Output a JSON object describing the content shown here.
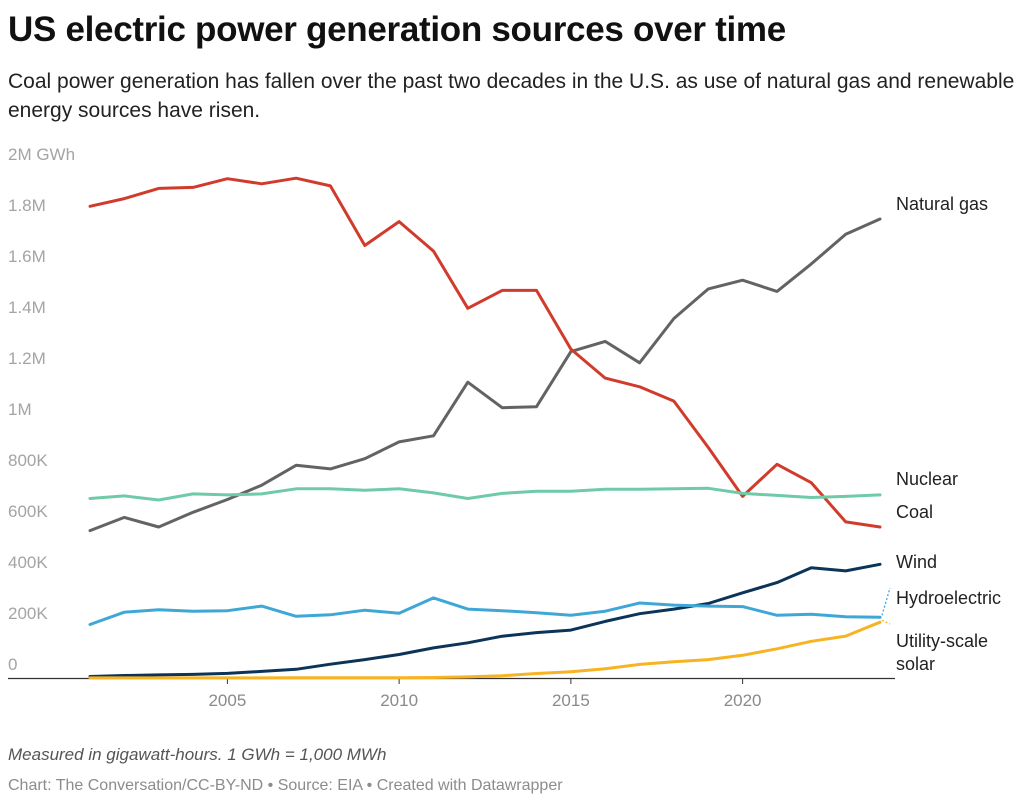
{
  "header": {
    "title": "US electric power generation sources over time",
    "subtitle": "Coal power generation has fallen over the past two decades in the U.S. as use of natural gas and renewable energy sources have risen."
  },
  "footer": {
    "note": "Measured in gigawatt-hours. 1 GWh = 1,000 MWh",
    "credit": "Chart: The Conversation/CC-BY-ND • Source: EIA • Created with Datawrapper"
  },
  "chart_data": {
    "type": "line",
    "title": "US electric power generation sources over time",
    "ylabel": "",
    "xlabel": "",
    "xlim": [
      2001,
      2024
    ],
    "ylim": [
      0,
      2000000
    ],
    "x_ticks": [
      2005,
      2010,
      2015,
      2020
    ],
    "y_ticks": [
      {
        "value": 0,
        "label": "0"
      },
      {
        "value": 200000,
        "label": "200K"
      },
      {
        "value": 400000,
        "label": "400K"
      },
      {
        "value": 600000,
        "label": "600K"
      },
      {
        "value": 800000,
        "label": "800K"
      },
      {
        "value": 1000000,
        "label": "1M"
      },
      {
        "value": 1200000,
        "label": "1.2M"
      },
      {
        "value": 1400000,
        "label": "1.4M"
      },
      {
        "value": 1600000,
        "label": "1.6M"
      },
      {
        "value": 1800000,
        "label": "1.8M"
      },
      {
        "value": 2000000,
        "label": "2M GWh"
      }
    ],
    "grid": false,
    "legend": "inline labels at line ends (right)",
    "x": [
      2001,
      2002,
      2003,
      2004,
      2005,
      2006,
      2007,
      2008,
      2009,
      2010,
      2011,
      2012,
      2013,
      2014,
      2015,
      2016,
      2017,
      2018,
      2019,
      2020,
      2021,
      2022,
      2023,
      2024
    ],
    "series": [
      {
        "name": "Natural gas",
        "label_lines": [
          "Natural gas"
        ],
        "color": "#636363",
        "values": [
          578000,
          630000,
          592000,
          650000,
          700000,
          756000,
          834000,
          820000,
          860000,
          926000,
          950000,
          1160000,
          1060000,
          1064000,
          1280000,
          1320000,
          1236000,
          1410000,
          1526000,
          1560000,
          1516000,
          1624000,
          1740000,
          1800000
        ]
      },
      {
        "name": "Coal",
        "label_lines": [
          "Coal"
        ],
        "color": "#d13b2c",
        "values": [
          1850000,
          1880000,
          1920000,
          1924000,
          1958000,
          1938000,
          1960000,
          1930000,
          1696000,
          1790000,
          1674000,
          1450000,
          1520000,
          1520000,
          1290000,
          1176000,
          1142000,
          1086000,
          904000,
          712000,
          838000,
          766000,
          612000,
          592000
        ]
      },
      {
        "name": "Nuclear",
        "label_lines": [
          "Nuclear"
        ],
        "color": "#6fcaa8",
        "values": [
          704000,
          714000,
          698000,
          722000,
          718000,
          722000,
          742000,
          742000,
          736000,
          742000,
          726000,
          704000,
          724000,
          732000,
          732000,
          740000,
          740000,
          742000,
          744000,
          724000,
          716000,
          708000,
          712000,
          718000
        ]
      },
      {
        "name": "Wind",
        "label_lines": [
          "Wind"
        ],
        "color": "#0b3458",
        "values": [
          6000,
          10000,
          12000,
          14000,
          18000,
          26000,
          34000,
          54000,
          72000,
          92000,
          118000,
          138000,
          164000,
          178000,
          188000,
          222000,
          252000,
          270000,
          292000,
          334000,
          374000,
          432000,
          420000,
          446000
        ]
      },
      {
        "name": "Hydroelectric",
        "label_lines": [
          "Hydroelectric"
        ],
        "color": "#3fa7d6",
        "values": [
          210000,
          258000,
          268000,
          262000,
          264000,
          282000,
          242000,
          248000,
          266000,
          254000,
          314000,
          270000,
          264000,
          256000,
          246000,
          262000,
          294000,
          286000,
          282000,
          280000,
          246000,
          250000,
          240000,
          238000
        ]
      },
      {
        "name": "Utility-scale solar",
        "label_lines": [
          "Utility-scale",
          "solar"
        ],
        "color": "#f7b322",
        "values": [
          500,
          500,
          500,
          500,
          500,
          500,
          600,
          900,
          900,
          1200,
          1800,
          4300,
          9000,
          17700,
          24900,
          36100,
          53300,
          63800,
          72200,
          89200,
          114700,
          143800,
          164500,
          219000
        ]
      }
    ]
  }
}
